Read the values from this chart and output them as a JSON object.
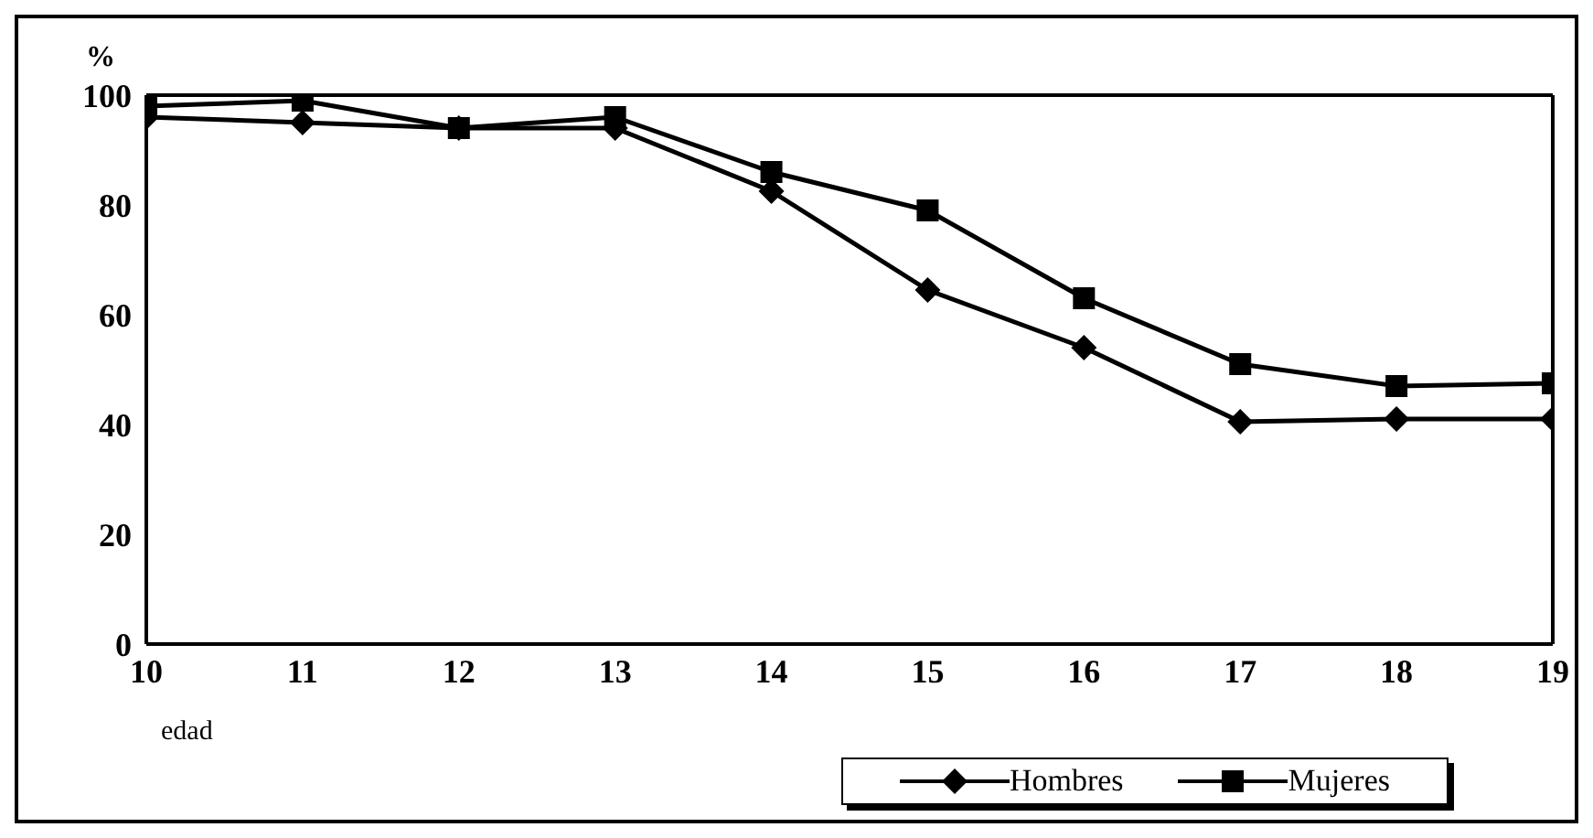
{
  "chart_data": {
    "type": "line",
    "xlabel": "edad",
    "ylabel": "%",
    "x": [
      10,
      11,
      12,
      13,
      14,
      15,
      16,
      17,
      18,
      19
    ],
    "xlim": [
      10,
      19
    ],
    "xticks": [
      10,
      11,
      12,
      13,
      14,
      15,
      16,
      17,
      18,
      19
    ],
    "ylim": [
      0,
      100
    ],
    "yticks": [
      0,
      20,
      40,
      60,
      80,
      100
    ],
    "grid": false,
    "legend": "bottom",
    "line_style": "solid",
    "series": [
      {
        "name": "Hombres",
        "color": "#000000",
        "marker": "diamond",
        "values": [
          96,
          95,
          94,
          94,
          82.5,
          64.5,
          54,
          40.5,
          41,
          41
        ]
      },
      {
        "name": "Mujeres",
        "color": "#000000",
        "marker": "square",
        "values": [
          98,
          99,
          94,
          96,
          86,
          79,
          63,
          51,
          47,
          47.5
        ]
      }
    ]
  }
}
